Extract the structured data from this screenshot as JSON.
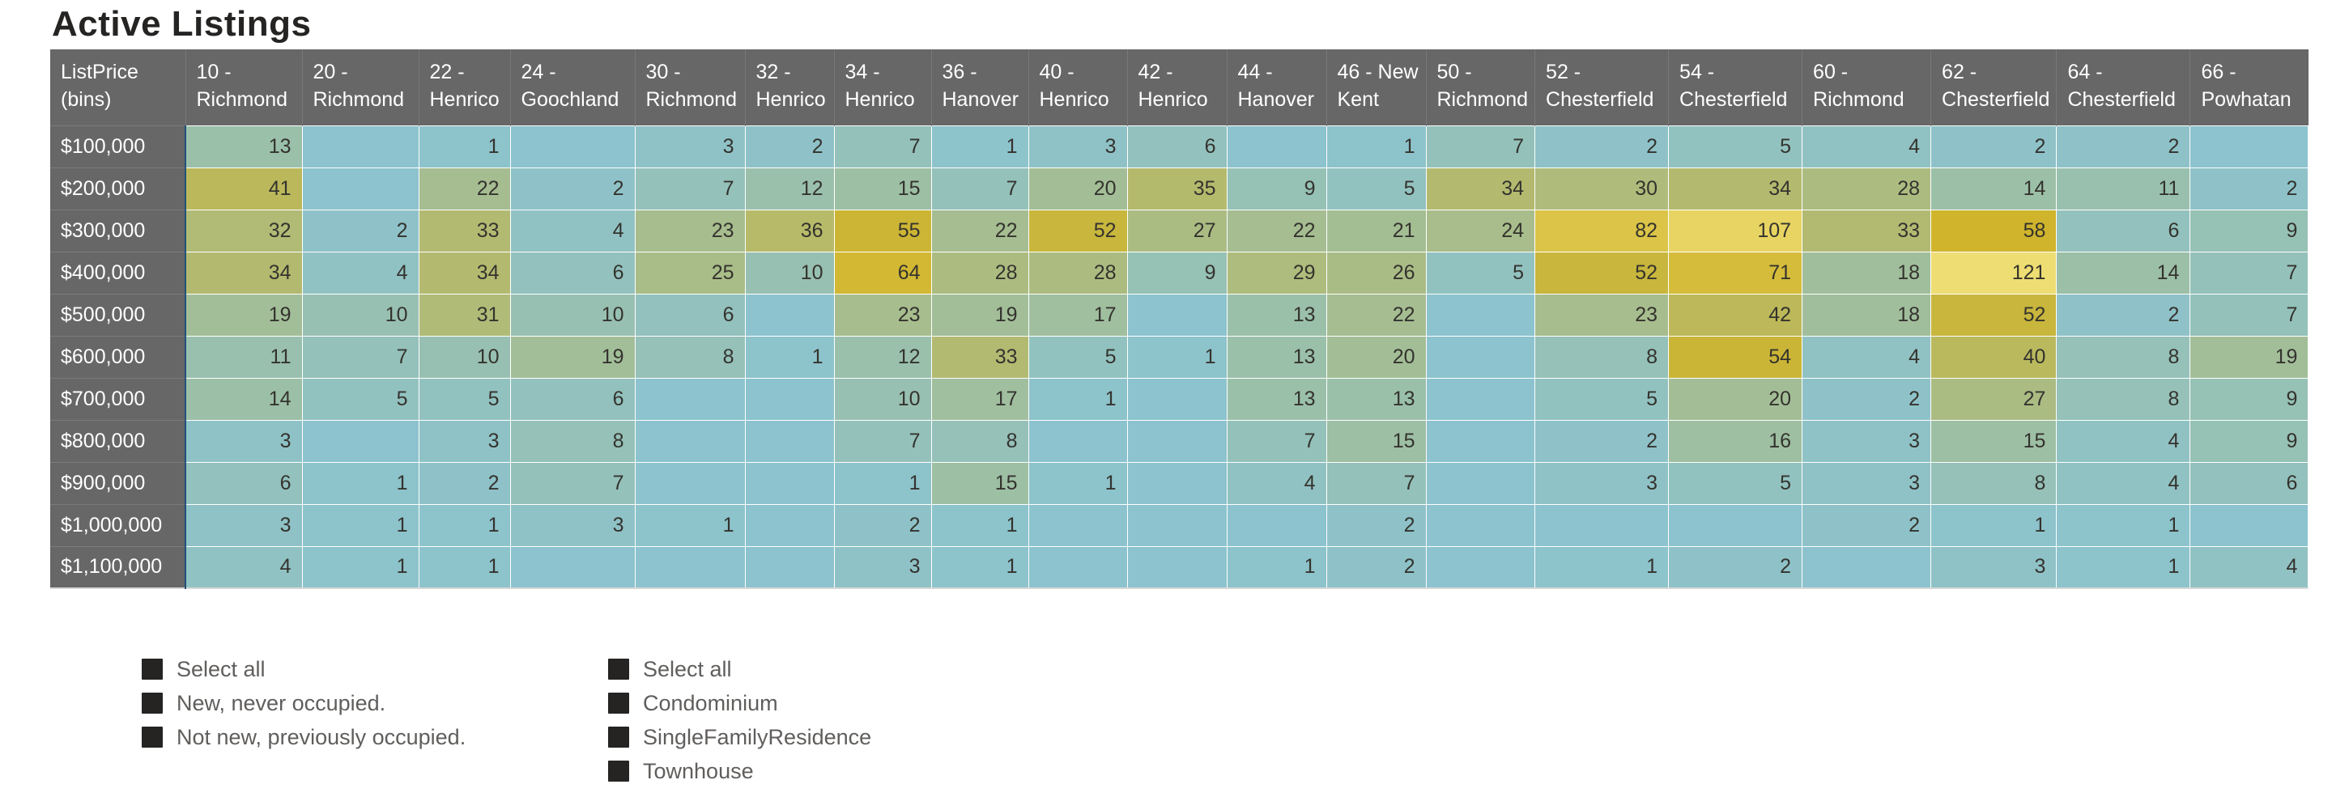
{
  "title": "Active Listings",
  "chart_data": {
    "type": "heatmap",
    "title": "Active Listings",
    "corner_label": "ListPrice (bins)",
    "columns": [
      "10 - Richmond",
      "20 - Richmond",
      "22 - Henrico",
      "24 - Goochland",
      "30 - Richmond",
      "32 - Henrico",
      "34 - Henrico",
      "36 - Hanover",
      "40 - Henrico",
      "42 - Henrico",
      "44 - Hanover",
      "46 - New Kent",
      "50 - Richmond",
      "52 - Chesterfield",
      "54 - Chesterfield",
      "60 - Richmond",
      "62 - Chesterfield",
      "64 - Chesterfield",
      "66 - Powhatan"
    ],
    "rows": [
      "$100,000",
      "$200,000",
      "$300,000",
      "$400,000",
      "$500,000",
      "$600,000",
      "$700,000",
      "$800,000",
      "$900,000",
      "$1,000,000",
      "$1,100,000"
    ],
    "values": [
      [
        13,
        null,
        1,
        null,
        3,
        2,
        7,
        1,
        3,
        6,
        null,
        1,
        7,
        2,
        5,
        4,
        2,
        2,
        null
      ],
      [
        41,
        null,
        22,
        2,
        7,
        12,
        15,
        7,
        20,
        35,
        9,
        5,
        34,
        30,
        34,
        28,
        14,
        11,
        2
      ],
      [
        32,
        2,
        33,
        4,
        23,
        36,
        55,
        22,
        52,
        27,
        22,
        21,
        24,
        82,
        107,
        33,
        58,
        6,
        9
      ],
      [
        34,
        4,
        34,
        6,
        25,
        10,
        64,
        28,
        28,
        9,
        29,
        26,
        5,
        52,
        71,
        18,
        121,
        14,
        7
      ],
      [
        19,
        10,
        31,
        10,
        6,
        null,
        23,
        19,
        17,
        null,
        13,
        22,
        null,
        23,
        42,
        18,
        52,
        2,
        7
      ],
      [
        11,
        7,
        10,
        19,
        8,
        1,
        12,
        33,
        5,
        1,
        13,
        20,
        null,
        8,
        54,
        4,
        40,
        8,
        19
      ],
      [
        14,
        5,
        5,
        6,
        null,
        null,
        10,
        17,
        1,
        null,
        13,
        13,
        null,
        5,
        20,
        2,
        27,
        8,
        9
      ],
      [
        3,
        null,
        3,
        8,
        null,
        null,
        7,
        8,
        null,
        null,
        7,
        15,
        null,
        2,
        16,
        3,
        15,
        4,
        9
      ],
      [
        6,
        1,
        2,
        7,
        null,
        null,
        1,
        15,
        1,
        null,
        4,
        7,
        null,
        3,
        5,
        3,
        8,
        4,
        6
      ],
      [
        3,
        1,
        1,
        3,
        1,
        null,
        2,
        1,
        null,
        null,
        null,
        2,
        null,
        null,
        null,
        2,
        1,
        1,
        null
      ],
      [
        4,
        1,
        1,
        null,
        null,
        null,
        3,
        1,
        null,
        null,
        1,
        2,
        null,
        1,
        2,
        null,
        3,
        1,
        4
      ]
    ],
    "legend_position": "none",
    "grid": true,
    "color_scale": {
      "min_value": 0,
      "mid_value": 58,
      "max_value": 121,
      "min_color": "#8CC3CE",
      "mid_color": "#CFB42C",
      "max_color": "#EEDD72",
      "empty_color": "#8CC3CE"
    },
    "header_bg": "#666766",
    "header_text_color": "#FFFFFF",
    "cell_text_color": "#34332E",
    "accent_line_color": "#23517A"
  },
  "slicers": [
    {
      "items": [
        {
          "label": "Select all",
          "checked": true
        },
        {
          "label": "New, never occupied.",
          "checked": true
        },
        {
          "label": "Not new, previously occupied.",
          "checked": true
        }
      ]
    },
    {
      "items": [
        {
          "label": "Select all",
          "checked": true
        },
        {
          "label": "Condominium",
          "checked": true
        },
        {
          "label": "SingleFamilyResidence",
          "checked": true
        },
        {
          "label": "Townhouse",
          "checked": true
        }
      ]
    }
  ],
  "checkbox_color": "#252423"
}
